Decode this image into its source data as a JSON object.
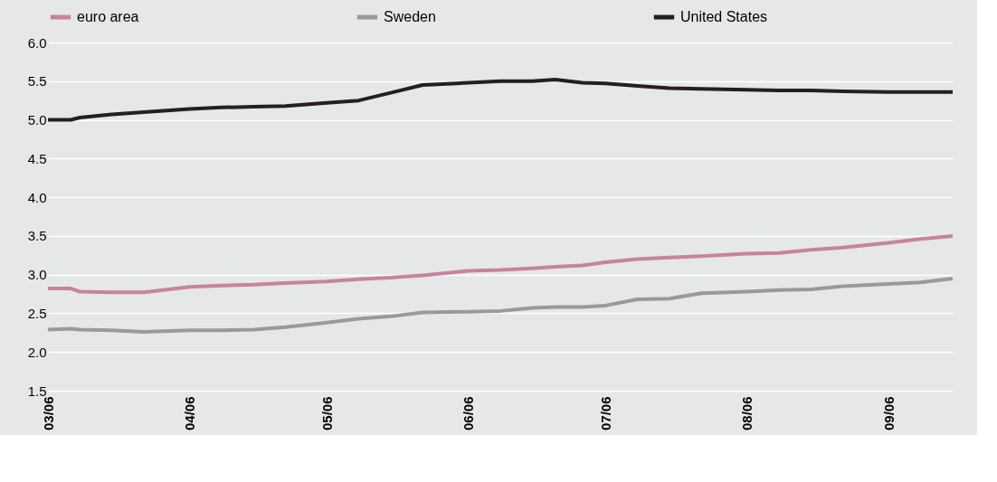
{
  "chart_data": {
    "type": "line",
    "x": [
      "2006-03-01",
      "2006-03-06",
      "2006-03-08",
      "2006-03-15",
      "2006-03-22",
      "2006-04-01",
      "2006-04-08",
      "2006-04-15",
      "2006-04-22",
      "2006-05-01",
      "2006-05-08",
      "2006-05-15",
      "2006-05-22",
      "2006-06-01",
      "2006-06-08",
      "2006-06-15",
      "2006-06-20",
      "2006-06-26",
      "2006-07-01",
      "2006-07-08",
      "2006-07-15",
      "2006-07-22",
      "2006-08-01",
      "2006-08-08",
      "2006-08-15",
      "2006-08-22",
      "2006-09-01",
      "2006-09-08",
      "2006-09-15"
    ],
    "series": [
      {
        "name": "euro area",
        "color": "#c6849a",
        "values": [
          2.82,
          2.82,
          2.78,
          2.77,
          2.77,
          2.84,
          2.86,
          2.87,
          2.89,
          2.91,
          2.94,
          2.96,
          2.99,
          3.05,
          3.06,
          3.08,
          3.1,
          3.12,
          3.16,
          3.2,
          3.22,
          3.24,
          3.27,
          3.28,
          3.32,
          3.35,
          3.41,
          3.46,
          3.5
        ]
      },
      {
        "name": "Sweden",
        "color": "#999999",
        "values": [
          2.29,
          2.3,
          2.29,
          2.28,
          2.26,
          2.28,
          2.28,
          2.29,
          2.32,
          2.38,
          2.43,
          2.46,
          2.51,
          2.52,
          2.53,
          2.57,
          2.58,
          2.58,
          2.6,
          2.68,
          2.69,
          2.76,
          2.78,
          2.8,
          2.81,
          2.85,
          2.88,
          2.9,
          2.95
        ]
      },
      {
        "name": "United States",
        "color": "#231f20",
        "values": [
          5.0,
          5.0,
          5.03,
          5.07,
          5.1,
          5.14,
          5.16,
          5.17,
          5.18,
          5.22,
          5.25,
          5.35,
          5.45,
          5.48,
          5.5,
          5.5,
          5.52,
          5.48,
          5.47,
          5.44,
          5.41,
          5.4,
          5.39,
          5.38,
          5.38,
          5.37,
          5.36,
          5.36,
          5.36
        ]
      }
    ],
    "xlim": [
      "2006-03-01",
      "2006-09-15"
    ],
    "xticks": [
      {
        "value": "2006-03-01",
        "label": "03/06"
      },
      {
        "value": "2006-04-01",
        "label": "04/06"
      },
      {
        "value": "2006-05-01",
        "label": "05/06"
      },
      {
        "value": "2006-06-01",
        "label": "06/06"
      },
      {
        "value": "2006-07-01",
        "label": "07/06"
      },
      {
        "value": "2006-08-01",
        "label": "08/06"
      },
      {
        "value": "2006-09-01",
        "label": "09/06"
      }
    ],
    "ylim": [
      1.5,
      6.0
    ],
    "yticks": [
      {
        "value": 1.5,
        "label": "1.5"
      },
      {
        "value": 2,
        "label": "2.0"
      },
      {
        "value": 2.5,
        "label": "2.5"
      },
      {
        "value": 3,
        "label": "3.0"
      },
      {
        "value": 3.5,
        "label": "3.5"
      },
      {
        "value": 4,
        "label": "4.0"
      },
      {
        "value": 4.5,
        "label": "4.5"
      },
      {
        "value": 5,
        "label": "5.0"
      },
      {
        "value": 5.5,
        "label": "5.5"
      },
      {
        "value": 6,
        "label": "6.0"
      }
    ],
    "grid": "y",
    "legend": "top",
    "marker": "none",
    "line_style": "solid"
  }
}
